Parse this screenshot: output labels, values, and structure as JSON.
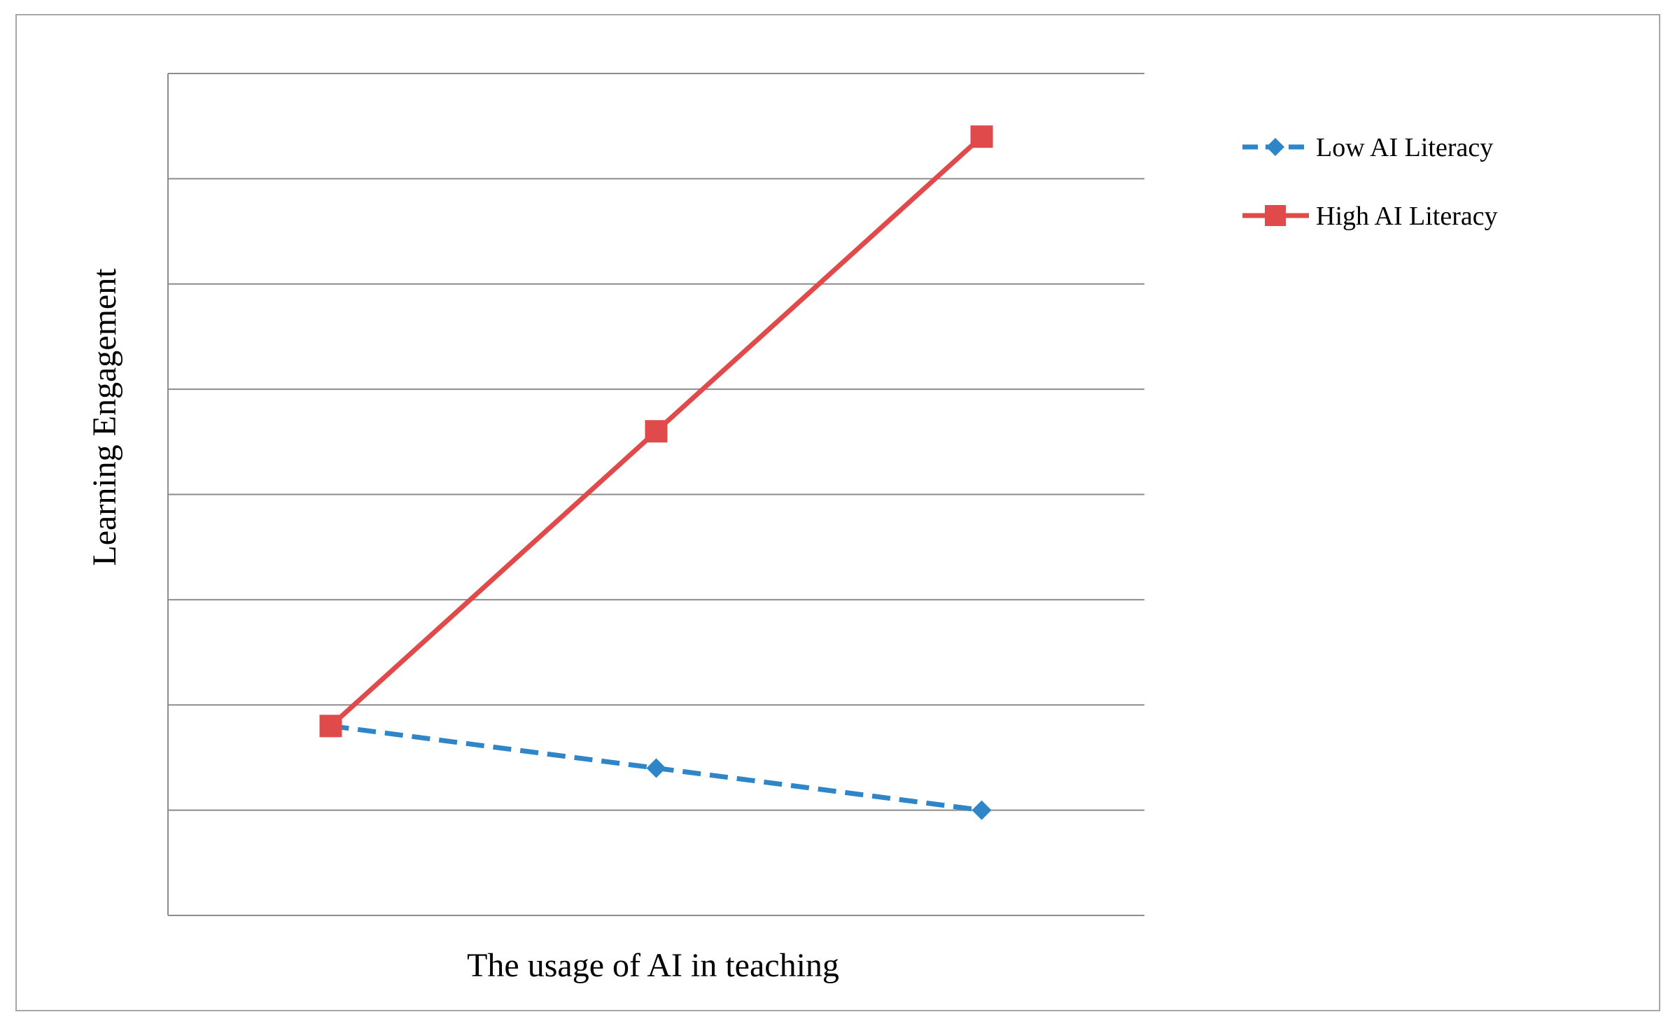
{
  "chart_data": {
    "type": "line",
    "title": "",
    "xlabel": "The usage of AI in teaching",
    "ylabel": "Learning  Engagement",
    "categories": [
      "",
      "",
      ""
    ],
    "ylim": [
      0,
      8
    ],
    "grid": true,
    "legend_position": "right",
    "series": [
      {
        "name": "Low AI Literacy",
        "values": [
          1.8,
          1.4,
          1.0
        ],
        "color": "#2e86c8",
        "line_style": "dashed",
        "marker": "diamond"
      },
      {
        "name": "High AI Literacy",
        "values": [
          1.8,
          4.6,
          7.4
        ],
        "color": "#e04a4a",
        "line_style": "solid",
        "marker": "square"
      }
    ]
  }
}
